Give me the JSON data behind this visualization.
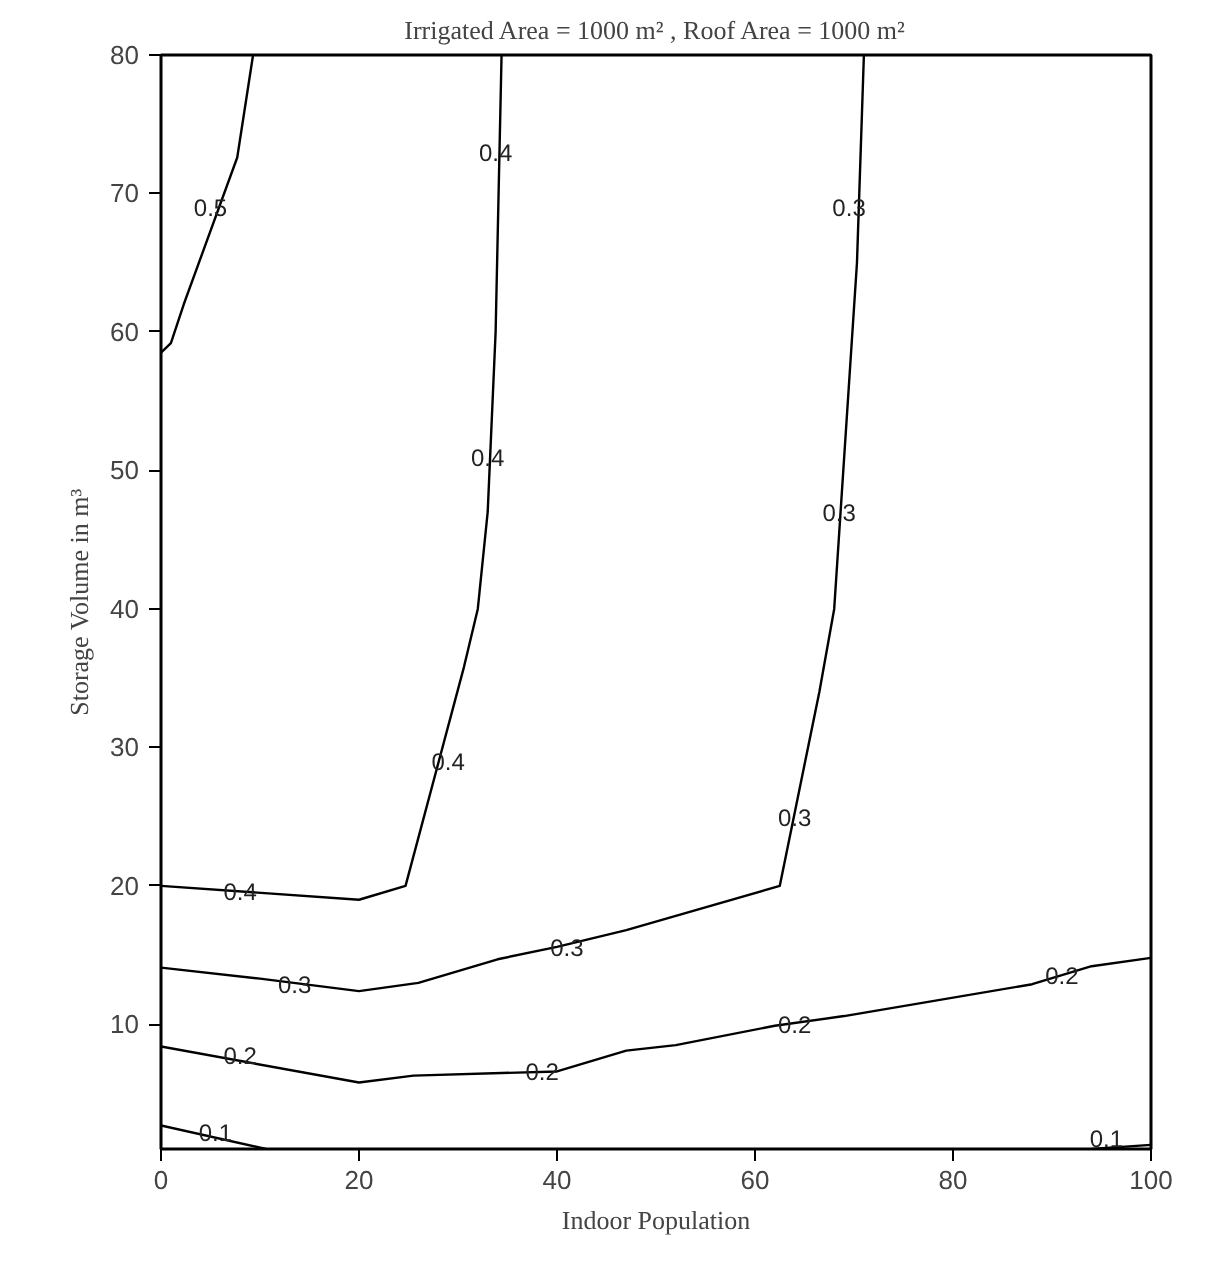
{
  "chart_data": {
    "type": "line",
    "title": "Irrigated Area = 1000 m² , Roof Area = 1000 m²",
    "xlabel": "Indoor Population",
    "ylabel": "Storage Volume in m³",
    "xlim": [
      0,
      100
    ],
    "ylim": [
      1,
      80
    ],
    "xticks": [
      0,
      20,
      40,
      60,
      80,
      100
    ],
    "yticks": [
      10,
      20,
      30,
      40,
      50,
      60,
      70,
      80
    ],
    "grid": false,
    "marker": "none",
    "line_style": "solid",
    "series": [
      {
        "color": "#000000",
        "x": [
          0,
          10.6
        ],
        "values": [
          2.7,
          1
        ]
      },
      {
        "color": "#000000",
        "x": [
          94,
          100
        ],
        "values": [
          1,
          1.3
        ]
      },
      {
        "color": "#000000",
        "x": [
          0,
          20,
          25.5,
          40,
          47,
          52,
          62,
          69,
          88,
          94,
          100
        ],
        "values": [
          8.4,
          5.8,
          6.3,
          6.6,
          8.1,
          8.5,
          9.9,
          10.6,
          12.9,
          14.2,
          14.8
        ]
      },
      {
        "color": "#000000",
        "x": [
          0,
          10,
          20,
          26,
          34,
          40,
          47,
          62.5,
          66.5,
          68,
          70.3,
          71
        ],
        "values": [
          14.1,
          13.3,
          12.4,
          13.0,
          14.7,
          15.6,
          16.8,
          20,
          34,
          40,
          65,
          80
        ]
      },
      {
        "color": "#000000",
        "x": [
          0,
          20,
          24.7,
          30.6,
          32,
          33,
          33.8,
          34.4
        ],
        "values": [
          20,
          19,
          20,
          35.8,
          40,
          47,
          60,
          80
        ]
      },
      {
        "color": "#000000",
        "x": [
          0,
          1,
          2.3,
          7.7,
          9.3
        ],
        "values": [
          58.5,
          59.2,
          62,
          72.6,
          80
        ]
      }
    ],
    "annotations": [
      {
        "text": "0.5",
        "x": 5,
        "y": 69
      },
      {
        "text": "0.4",
        "x": 33.8,
        "y": 73
      },
      {
        "text": "0.4",
        "x": 33,
        "y": 51
      },
      {
        "text": "0.4",
        "x": 29,
        "y": 29
      },
      {
        "text": "0.4",
        "x": 8,
        "y": 19.6
      },
      {
        "text": "0.3",
        "x": 69.5,
        "y": 69
      },
      {
        "text": "0.3",
        "x": 68.5,
        "y": 47
      },
      {
        "text": "0.3",
        "x": 64,
        "y": 25
      },
      {
        "text": "0.3",
        "x": 13.5,
        "y": 12.9
      },
      {
        "text": "0.3",
        "x": 41,
        "y": 15.6
      },
      {
        "text": "0.2",
        "x": 8,
        "y": 7.8
      },
      {
        "text": "0.2",
        "x": 38.5,
        "y": 6.6
      },
      {
        "text": "0.2",
        "x": 64,
        "y": 10
      },
      {
        "text": "0.2",
        "x": 91,
        "y": 13.6
      },
      {
        "text": "0.1",
        "x": 5.5,
        "y": 2.2
      },
      {
        "text": "0.1",
        "x": 95.5,
        "y": 1.8
      }
    ]
  }
}
